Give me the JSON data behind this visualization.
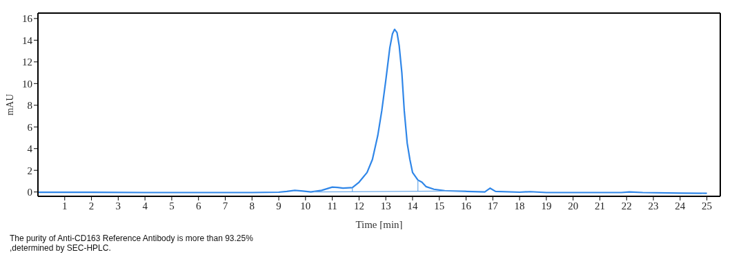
{
  "chart_data": {
    "type": "line",
    "xlabel": "Time [min]",
    "ylabel": "mAU",
    "xlim": [
      0,
      25.5
    ],
    "ylim": [
      -0.4,
      16.5
    ],
    "xticks": [
      1,
      2,
      3,
      4,
      5,
      6,
      7,
      8,
      9,
      10,
      11,
      12,
      13,
      14,
      15,
      16,
      17,
      18,
      19,
      20,
      21,
      22,
      23,
      24,
      25
    ],
    "yticks": [
      0,
      2,
      4,
      6,
      8,
      10,
      12,
      14,
      16
    ],
    "grid": false,
    "legend": false,
    "marker": "none",
    "line_style": "solid",
    "series": [
      {
        "color": "#2f86e8",
        "x": [
          0,
          2,
          4,
          6,
          8,
          9,
          9.3,
          9.6,
          9.9,
          10.2,
          10.6,
          11.0,
          11.2,
          11.4,
          11.75,
          12.0,
          12.3,
          12.5,
          12.7,
          12.85,
          13.0,
          13.15,
          13.25,
          13.33,
          13.42,
          13.5,
          13.6,
          13.69,
          13.8,
          13.9,
          14.0,
          14.2,
          14.35,
          14.5,
          14.8,
          15.2,
          16,
          16.7,
          16.9,
          17.1,
          18,
          18.4,
          19,
          21.8,
          22.1,
          22.6,
          24,
          25
        ],
        "values": [
          -0.03,
          -0.03,
          -0.05,
          -0.05,
          -0.05,
          -0.02,
          0.05,
          0.15,
          0.08,
          0.0,
          0.15,
          0.45,
          0.42,
          0.35,
          0.4,
          0.9,
          1.8,
          3.0,
          5.2,
          7.5,
          10.3,
          13.3,
          14.6,
          15.0,
          14.7,
          13.5,
          11,
          7.5,
          4.5,
          3.0,
          1.8,
          1.1,
          0.9,
          0.5,
          0.25,
          0.12,
          0.05,
          0.0,
          0.35,
          0.05,
          -0.02,
          0.03,
          -0.05,
          -0.05,
          0.0,
          -0.05,
          -0.1,
          -0.12
        ]
      },
      {
        "color": "#6aa8e8",
        "x": [
          10.3,
          16.0
        ],
        "values": [
          0.0,
          0.1
        ]
      },
      {
        "color": "#6aa8e8",
        "x": [
          11.75,
          11.75
        ],
        "values": [
          0.05,
          0.4
        ]
      },
      {
        "color": "#6aa8e8",
        "x": [
          14.2,
          14.2
        ],
        "values": [
          0.08,
          1.1
        ]
      }
    ],
    "annotations": [
      "The purity of Anti-CD163 Reference Antibody is more than 93.25% ,determined by SEC-HPLC."
    ]
  }
}
